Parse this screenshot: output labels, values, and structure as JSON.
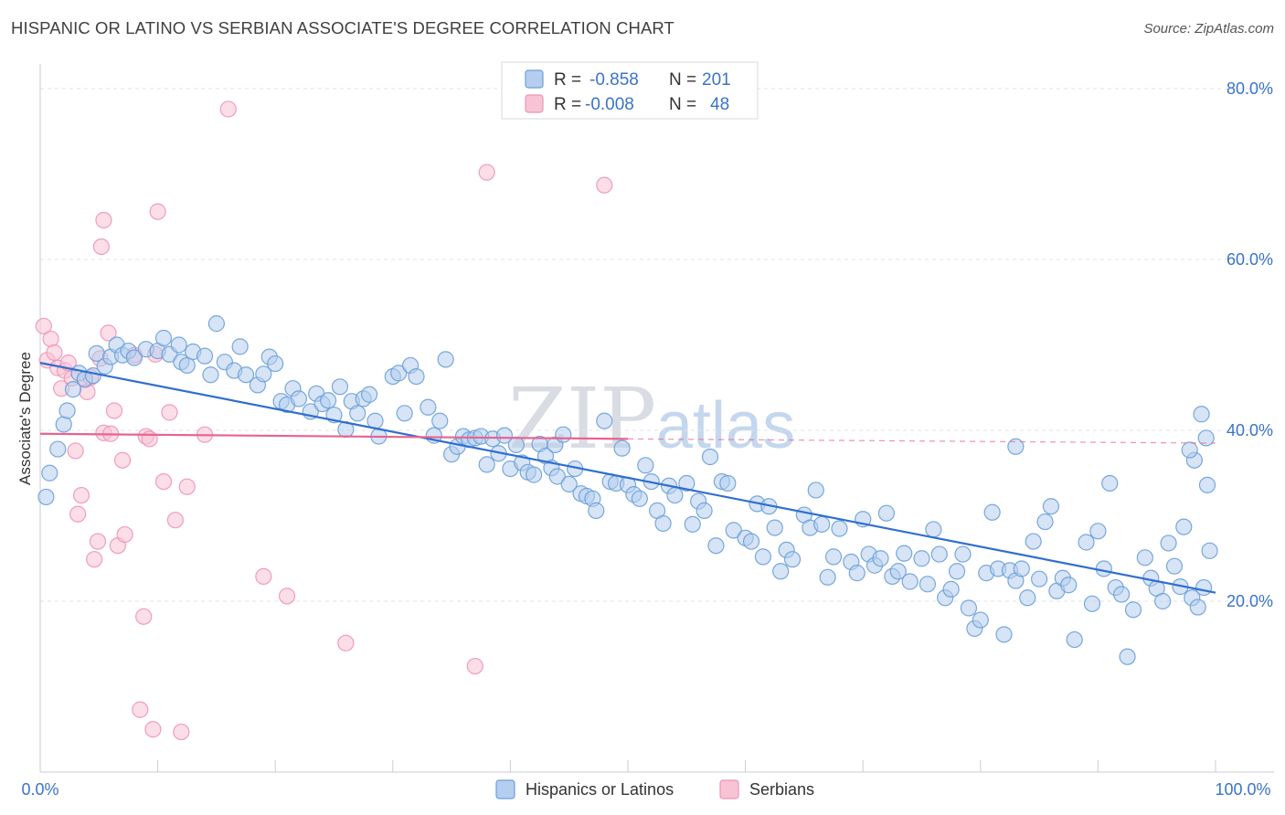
{
  "title": "HISPANIC OR LATINO VS SERBIAN ASSOCIATE'S DEGREE CORRELATION CHART",
  "source": "Source: ZipAtlas.com",
  "watermark": {
    "zip": "ZIP",
    "atlas": "atlas"
  },
  "colors": {
    "blue": "#6a9fd8",
    "blue_fill": "#b5cdef",
    "blue_line": "#2f6ed0",
    "pink": "#ef94b2",
    "pink_fill": "#f7c3d5",
    "pink_line": "#e8638f",
    "axis_text": "#3a73c9",
    "grid": "#dfe3e8"
  },
  "legend_top": {
    "rows": [
      {
        "r_label": "R =",
        "r_value": "-0.858",
        "n_label": "N =",
        "n_value": "201"
      },
      {
        "r_label": "R =",
        "r_value": "-0.008",
        "n_label": "N =",
        "n_value": "48"
      }
    ]
  },
  "chart_data": {
    "type": "scatter",
    "title": "HISPANIC OR LATINO VS SERBIAN ASSOCIATE'S DEGREE CORRELATION CHART",
    "xlabel": "",
    "ylabel": "Associate's Degree",
    "xlim": [
      0,
      100
    ],
    "ylim": [
      0,
      82
    ],
    "x_tick_labels": [
      "0.0%",
      "100.0%"
    ],
    "y_ticks": [
      20,
      40,
      60,
      80
    ],
    "y_tick_labels": [
      "20.0%",
      "40.0%",
      "60.0%",
      "80.0%"
    ],
    "grid": "horizontal dashed",
    "legend": "top-center and bottom",
    "series": [
      {
        "name": "Hispanics or Latinos",
        "R": -0.858,
        "N": 201,
        "trend": {
          "x": [
            0,
            100
          ],
          "y": [
            47.9,
            21.0
          ]
        },
        "points": [
          [
            0.5,
            32.2
          ],
          [
            0.8,
            35.0
          ],
          [
            1.5,
            37.8
          ],
          [
            2,
            40.7
          ],
          [
            2.3,
            42.3
          ],
          [
            2.8,
            44.8
          ],
          [
            3.3,
            46.7
          ],
          [
            3.8,
            46.0
          ],
          [
            4.5,
            46.4
          ],
          [
            4.8,
            49.0
          ],
          [
            5.5,
            47.5
          ],
          [
            6,
            48.6
          ],
          [
            6.5,
            50.0
          ],
          [
            7,
            48.8
          ],
          [
            7.5,
            49.3
          ],
          [
            8,
            48.5
          ],
          [
            9,
            49.5
          ],
          [
            10,
            49.3
          ],
          [
            10.5,
            50.8
          ],
          [
            11,
            48.9
          ],
          [
            11.8,
            50.0
          ],
          [
            12,
            48.0
          ],
          [
            12.5,
            47.6
          ],
          [
            13,
            49.2
          ],
          [
            14,
            48.7
          ],
          [
            14.5,
            46.5
          ],
          [
            15,
            52.5
          ],
          [
            15.7,
            48.0
          ],
          [
            16.5,
            47.0
          ],
          [
            17,
            49.8
          ],
          [
            17.5,
            46.5
          ],
          [
            18.5,
            45.3
          ],
          [
            19,
            46.6
          ],
          [
            19.5,
            48.6
          ],
          [
            20,
            47.8
          ],
          [
            20.5,
            43.4
          ],
          [
            21,
            43.0
          ],
          [
            21.5,
            44.9
          ],
          [
            22,
            43.7
          ],
          [
            23,
            42.2
          ],
          [
            23.5,
            44.3
          ],
          [
            24,
            43.1
          ],
          [
            24.5,
            43.5
          ],
          [
            25,
            41.8
          ],
          [
            25.5,
            45.1
          ],
          [
            26,
            40.1
          ],
          [
            26.5,
            43.4
          ],
          [
            27,
            42.0
          ],
          [
            27.5,
            43.7
          ],
          [
            28,
            44.2
          ],
          [
            28.5,
            41.1
          ],
          [
            28.8,
            39.3
          ],
          [
            30,
            46.3
          ],
          [
            30.5,
            46.7
          ],
          [
            31,
            42.0
          ],
          [
            31.5,
            47.6
          ],
          [
            32,
            46.3
          ],
          [
            33,
            42.7
          ],
          [
            33.5,
            39.4
          ],
          [
            34,
            41.1
          ],
          [
            34.5,
            48.3
          ],
          [
            35,
            37.2
          ],
          [
            35.5,
            38.1
          ],
          [
            36,
            39.3
          ],
          [
            36.5,
            38.9
          ],
          [
            37,
            39.1
          ],
          [
            37.5,
            39.3
          ],
          [
            38,
            36.0
          ],
          [
            38.5,
            39.0
          ],
          [
            39,
            37.3
          ],
          [
            39.5,
            39.4
          ],
          [
            40,
            35.5
          ],
          [
            40.5,
            38.3
          ],
          [
            41,
            36.2
          ],
          [
            41.5,
            35.1
          ],
          [
            42,
            34.8
          ],
          [
            42.5,
            38.4
          ],
          [
            43,
            37.0
          ],
          [
            43.5,
            35.6
          ],
          [
            43.8,
            38.3
          ],
          [
            44,
            34.6
          ],
          [
            44.5,
            39.5
          ],
          [
            45,
            33.7
          ],
          [
            45.5,
            35.5
          ],
          [
            46,
            32.6
          ],
          [
            46.5,
            32.3
          ],
          [
            47,
            32.0
          ],
          [
            47.3,
            30.6
          ],
          [
            48,
            41.1
          ],
          [
            48.5,
            34.0
          ],
          [
            49,
            33.8
          ],
          [
            49.5,
            37.9
          ],
          [
            50,
            33.6
          ],
          [
            50.5,
            32.5
          ],
          [
            51,
            32.0
          ],
          [
            51.5,
            35.9
          ],
          [
            52,
            34.0
          ],
          [
            52.5,
            30.6
          ],
          [
            53,
            29.1
          ],
          [
            53.5,
            33.5
          ],
          [
            54,
            32.4
          ],
          [
            55,
            33.8
          ],
          [
            55.5,
            29.0
          ],
          [
            56,
            31.7
          ],
          [
            56.5,
            30.6
          ],
          [
            57,
            36.9
          ],
          [
            57.5,
            26.5
          ],
          [
            58,
            34.0
          ],
          [
            58.5,
            33.8
          ],
          [
            59,
            28.3
          ],
          [
            60,
            27.4
          ],
          [
            60.5,
            27.0
          ],
          [
            61,
            31.4
          ],
          [
            61.5,
            25.2
          ],
          [
            62,
            31.1
          ],
          [
            62.5,
            28.6
          ],
          [
            63,
            23.5
          ],
          [
            63.5,
            26.0
          ],
          [
            64,
            24.9
          ],
          [
            65,
            30.1
          ],
          [
            65.5,
            28.6
          ],
          [
            66,
            33.0
          ],
          [
            66.5,
            29.0
          ],
          [
            67,
            22.8
          ],
          [
            67.5,
            25.2
          ],
          [
            68,
            28.5
          ],
          [
            69,
            24.6
          ],
          [
            69.5,
            23.3
          ],
          [
            70,
            29.6
          ],
          [
            70.5,
            25.5
          ],
          [
            71,
            24.2
          ],
          [
            71.5,
            25.0
          ],
          [
            72,
            30.3
          ],
          [
            72.5,
            22.9
          ],
          [
            73,
            23.5
          ],
          [
            73.5,
            25.6
          ],
          [
            74,
            22.3
          ],
          [
            75,
            25.0
          ],
          [
            75.5,
            22.0
          ],
          [
            76,
            28.4
          ],
          [
            76.5,
            25.5
          ],
          [
            77,
            20.4
          ],
          [
            77.5,
            21.4
          ],
          [
            78,
            23.5
          ],
          [
            78.5,
            25.5
          ],
          [
            79,
            19.2
          ],
          [
            79.5,
            16.8
          ],
          [
            80,
            17.8
          ],
          [
            80.5,
            23.3
          ],
          [
            81,
            30.4
          ],
          [
            81.5,
            23.8
          ],
          [
            82,
            16.1
          ],
          [
            82.5,
            23.6
          ],
          [
            83,
            22.4
          ],
          [
            83.5,
            23.8
          ],
          [
            84,
            20.4
          ],
          [
            84.5,
            27.0
          ],
          [
            85,
            22.6
          ],
          [
            85.5,
            29.3
          ],
          [
            86,
            31.1
          ],
          [
            86.5,
            21.2
          ],
          [
            87,
            22.7
          ],
          [
            87.5,
            21.9
          ],
          [
            88,
            15.5
          ],
          [
            89,
            26.9
          ],
          [
            89.5,
            19.7
          ],
          [
            90,
            28.2
          ],
          [
            90.5,
            23.8
          ],
          [
            91,
            33.8
          ],
          [
            91.5,
            21.6
          ],
          [
            92,
            20.8
          ],
          [
            92.5,
            13.5
          ],
          [
            93,
            19.0
          ],
          [
            94,
            25.1
          ],
          [
            94.5,
            22.7
          ],
          [
            95,
            21.5
          ],
          [
            95.5,
            20.0
          ],
          [
            96,
            26.8
          ],
          [
            96.5,
            24.1
          ],
          [
            97,
            21.7
          ],
          [
            97.3,
            28.7
          ],
          [
            98,
            20.4
          ],
          [
            98.5,
            19.3
          ],
          [
            99,
            21.6
          ],
          [
            99.3,
            33.6
          ],
          [
            99.5,
            25.9
          ],
          [
            98.8,
            41.9
          ],
          [
            99.2,
            39.1
          ],
          [
            98.2,
            36.5
          ],
          [
            97.8,
            37.7
          ],
          [
            83,
            38.1
          ]
        ]
      },
      {
        "name": "Serbians",
        "R": -0.008,
        "N": 48,
        "trend": {
          "x": [
            0,
            50
          ],
          "y": [
            39.6,
            39.0
          ]
        },
        "trend_dashed": {
          "x": [
            50,
            100
          ],
          "y": [
            39.0,
            38.5
          ]
        },
        "points": [
          [
            0.3,
            52.2
          ],
          [
            0.6,
            48.2
          ],
          [
            0.9,
            50.7
          ],
          [
            1.2,
            49.1
          ],
          [
            1.5,
            47.3
          ],
          [
            1.8,
            44.9
          ],
          [
            2.1,
            47.0
          ],
          [
            2.4,
            47.9
          ],
          [
            2.7,
            46.1
          ],
          [
            3,
            37.6
          ],
          [
            3.2,
            30.2
          ],
          [
            3.5,
            32.4
          ],
          [
            3.8,
            45.9
          ],
          [
            4,
            44.5
          ],
          [
            4.3,
            46.2
          ],
          [
            4.6,
            24.9
          ],
          [
            4.9,
            27.0
          ],
          [
            5.1,
            48.4
          ],
          [
            5.4,
            39.7
          ],
          [
            5.8,
            51.4
          ],
          [
            5.2,
            61.5
          ],
          [
            5.4,
            64.6
          ],
          [
            6,
            39.6
          ],
          [
            6.3,
            42.3
          ],
          [
            6.6,
            26.5
          ],
          [
            7,
            36.5
          ],
          [
            7.2,
            27.8
          ],
          [
            8.0,
            48.8
          ],
          [
            8.5,
            7.3
          ],
          [
            8.8,
            18.2
          ],
          [
            9.0,
            39.3
          ],
          [
            9.3,
            39.0
          ],
          [
            9.6,
            5.0
          ],
          [
            9.8,
            48.9
          ],
          [
            10,
            65.6
          ],
          [
            10.5,
            34.0
          ],
          [
            11,
            42.1
          ],
          [
            11.5,
            29.5
          ],
          [
            12,
            4.7
          ],
          [
            12.5,
            33.4
          ],
          [
            14,
            39.5
          ],
          [
            16,
            77.6
          ],
          [
            19,
            22.9
          ],
          [
            21,
            20.6
          ],
          [
            26,
            15.1
          ],
          [
            37,
            12.4
          ],
          [
            38,
            70.2
          ],
          [
            48,
            68.7
          ]
        ]
      }
    ]
  },
  "legend_bottom": {
    "items": [
      {
        "label": "Hispanics or Latinos"
      },
      {
        "label": "Serbians"
      }
    ]
  }
}
